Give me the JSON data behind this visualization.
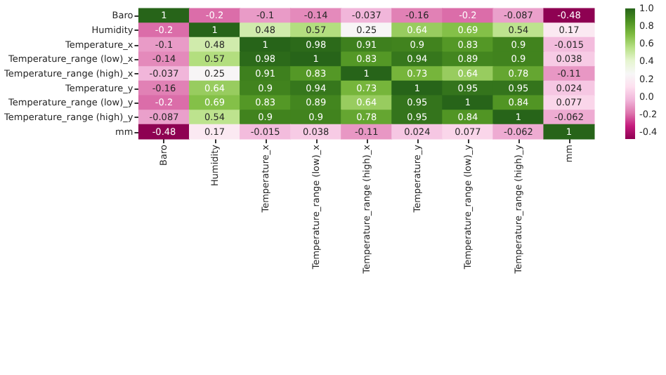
{
  "chart_data": {
    "type": "heatmap",
    "categories": [
      "Baro",
      "Humidity",
      "Temperature_x",
      "Temperature_range (low)_x",
      "Temperature_range (high)_x",
      "Temperature_y",
      "Temperature_range (low)_y",
      "Temperature_range (high)_y",
      "mm"
    ],
    "y_categories": [
      "Baro",
      "Humidity",
      "Temperature_x",
      "Temperature_range (low)_x",
      "Temperature_range (high)_x",
      "Temperature_y",
      "Temperature_range (low)_y",
      "Temperature_range (high)_y",
      "mm"
    ],
    "cells": [
      [
        1,
        -0.2,
        -0.1,
        -0.14,
        -0.037,
        -0.16,
        -0.2,
        -0.087,
        -0.48
      ],
      [
        -0.2,
        1,
        0.48,
        0.57,
        0.25,
        0.64,
        0.69,
        0.54,
        0.17
      ],
      [
        -0.1,
        0.48,
        1,
        0.98,
        0.91,
        0.9,
        0.83,
        0.9,
        -0.015
      ],
      [
        -0.14,
        0.57,
        0.98,
        1,
        0.83,
        0.94,
        0.89,
        0.9,
        0.038
      ],
      [
        -0.037,
        0.25,
        0.91,
        0.83,
        1,
        0.73,
        0.64,
        0.78,
        -0.11
      ],
      [
        -0.16,
        0.64,
        0.9,
        0.94,
        0.73,
        1,
        0.95,
        0.95,
        0.024
      ],
      [
        -0.2,
        0.69,
        0.83,
        0.89,
        0.64,
        0.95,
        1,
        0.84,
        0.077
      ],
      [
        -0.087,
        0.54,
        0.9,
        0.9,
        0.78,
        0.95,
        0.84,
        1,
        -0.062
      ],
      [
        -0.48,
        0.17,
        -0.015,
        0.038,
        -0.11,
        0.024,
        0.077,
        -0.062,
        1
      ]
    ],
    "clim": [
      -0.48,
      1
    ],
    "cticks": [
      -0.4,
      -0.2,
      {
        "value": 0,
        "label": "0.0"
      },
      0.2,
      0.4,
      0.6,
      0.8,
      {
        "value": 1,
        "label": "1.0"
      }
    ],
    "data_labels": true
  }
}
